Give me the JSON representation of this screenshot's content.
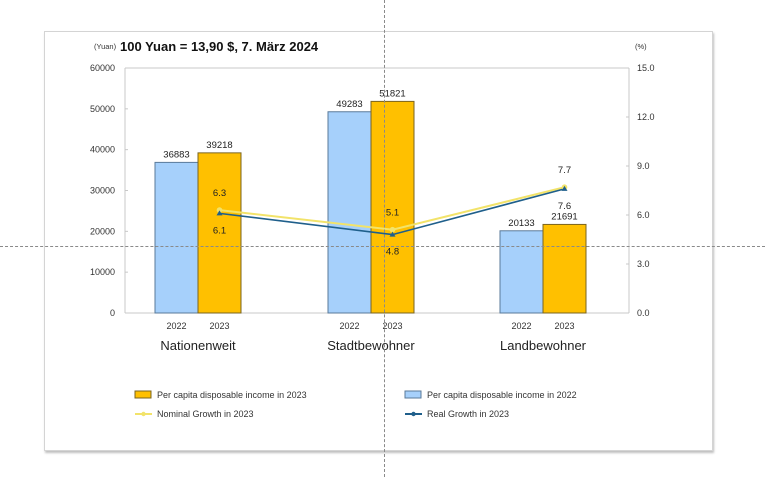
{
  "card_title": "100 Yuan = 13,90 $, 7. März 2024",
  "left_unit": "(Yuan)",
  "right_unit": "(%)",
  "colors": {
    "bar_2022": "#a6d0fb",
    "bar_2022_border": "#5a7a9a",
    "bar_2023": "#ffc000",
    "bar_2023_border": "#7a6420",
    "nominal_line": "#f2e36a",
    "real_line": "#1f5f8b",
    "axis": "#c8c8c8"
  },
  "chart_data": {
    "type": "bar",
    "title": "100 Yuan = 13,90 $, 7. März 2024",
    "categories": [
      "Nationenweit",
      "Stadtbewohner",
      "Landbewohner"
    ],
    "sub_categories": [
      "2022",
      "2023"
    ],
    "ylabel": "(Yuan)",
    "y2label": "(%)",
    "ylim": [
      0,
      60000
    ],
    "y2lim": [
      0,
      15
    ],
    "yticks": [
      "0",
      "10000",
      "20000",
      "30000",
      "40000",
      "50000",
      "60000"
    ],
    "y2ticks": [
      "0.0",
      "3.0",
      "6.0",
      "9.0",
      "12.0",
      "15.0"
    ],
    "yticks_values": [
      0,
      10000,
      20000,
      30000,
      40000,
      50000,
      60000
    ],
    "y2ticks_values": [
      0,
      3,
      6,
      9,
      12,
      15
    ],
    "grid": false,
    "legend_position": "bottom",
    "series": [
      {
        "name": "Per capita disposable income in 2022",
        "kind": "bar",
        "axis": "left",
        "values": [
          36883,
          49283,
          20133
        ],
        "labels": [
          "36883",
          "49283",
          "20133"
        ]
      },
      {
        "name": "Per capita disposable income in 2023",
        "kind": "bar",
        "axis": "left",
        "values": [
          39218,
          51821,
          21691
        ],
        "labels": [
          "39218",
          "51821",
          "21691"
        ]
      },
      {
        "name": "Nominal Growth in 2023",
        "kind": "line",
        "axis": "right",
        "values": [
          6.3,
          5.1,
          7.7
        ],
        "labels": [
          "6.3",
          "5.1",
          "7.7"
        ]
      },
      {
        "name": "Real Growth in 2023",
        "kind": "line",
        "axis": "right",
        "values": [
          6.1,
          4.8,
          7.6
        ],
        "labels": [
          "6.1",
          "4.8",
          "7.6"
        ]
      }
    ],
    "legend": [
      "Per capita disposable income in 2023",
      "Per capita disposable income in 2022",
      "Nominal Growth in 2023",
      "Real Growth in 2023"
    ]
  }
}
